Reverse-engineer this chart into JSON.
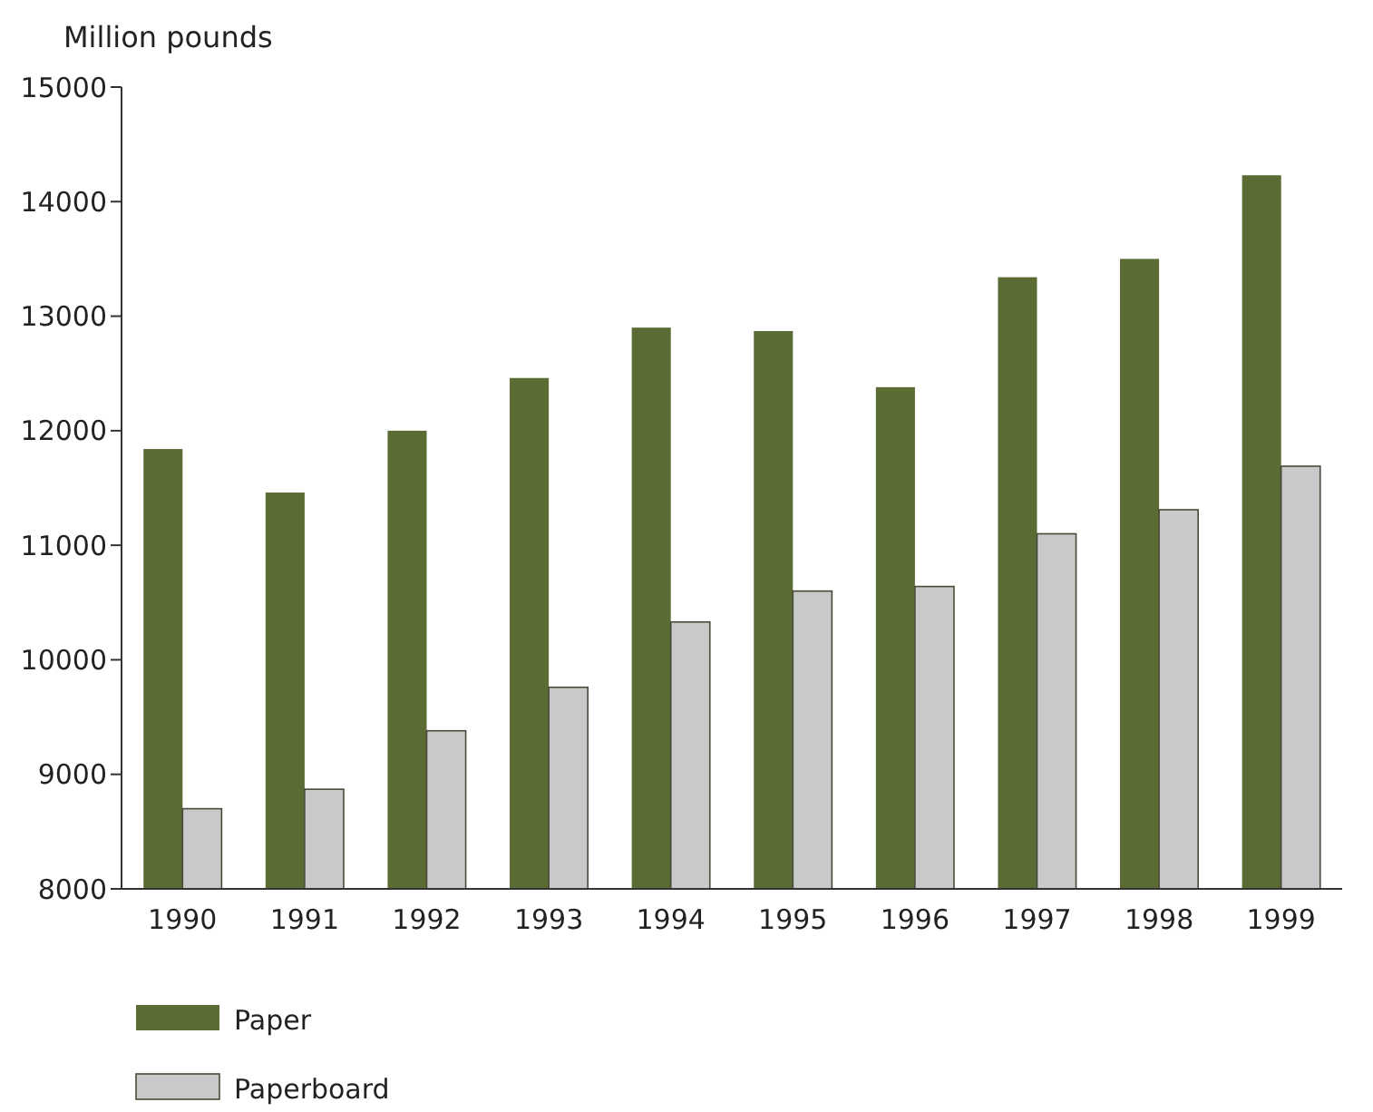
{
  "chart_data": {
    "type": "bar",
    "ylabel": "Million pounds",
    "categories": [
      "1990",
      "1991",
      "1992",
      "1993",
      "1994",
      "1995",
      "1996",
      "1997",
      "1998",
      "1999"
    ],
    "series": [
      {
        "name": "Paper",
        "color": "#5a6b34",
        "values": [
          11840,
          11460,
          12000,
          12460,
          12900,
          12870,
          12380,
          13340,
          13500,
          14230
        ]
      },
      {
        "name": "Paperboard",
        "color": "#c8c9c9",
        "values": [
          8700,
          8870,
          9380,
          9760,
          10330,
          10600,
          10640,
          11100,
          11310,
          11690
        ]
      }
    ],
    "ylim": [
      8000,
      15000
    ],
    "yticks": [
      8000,
      9000,
      10000,
      11000,
      12000,
      13000,
      14000,
      15000
    ],
    "grid": false,
    "legend": "bottom"
  }
}
